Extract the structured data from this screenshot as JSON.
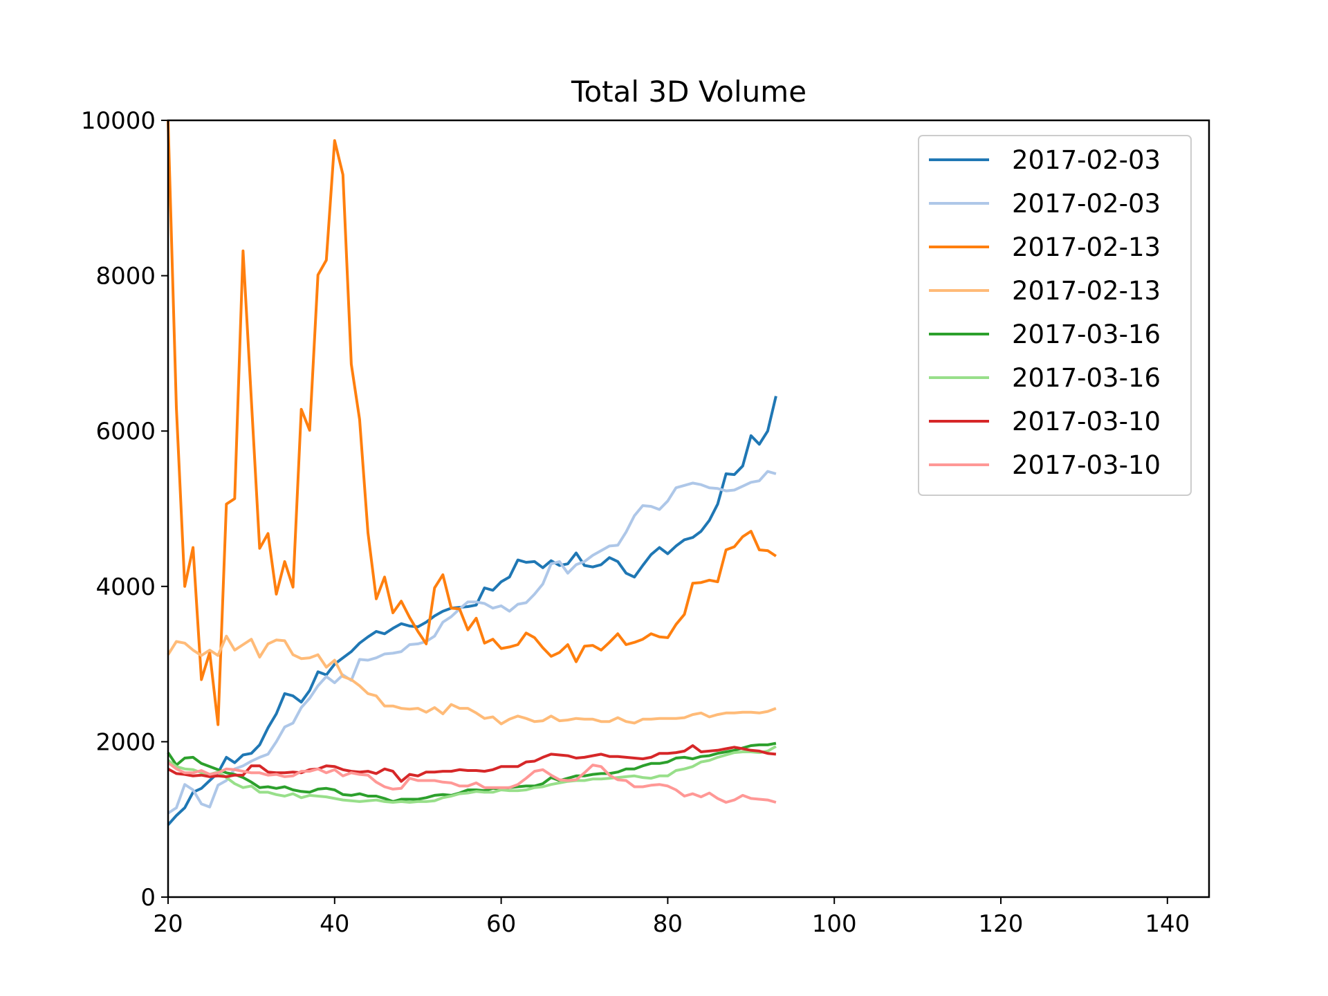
{
  "chart_data": {
    "type": "line",
    "title": "Total 3D Volume",
    "xlabel": "",
    "ylabel": "",
    "xlim": [
      20,
      145
    ],
    "ylim": [
      0,
      10000
    ],
    "xticks": [
      20,
      40,
      60,
      80,
      100,
      120,
      140
    ],
    "yticks": [
      0,
      2000,
      4000,
      6000,
      8000,
      10000
    ],
    "grid": false,
    "legend_position": "top-right",
    "x": [
      20,
      21,
      22,
      23,
      24,
      25,
      26,
      27,
      28,
      29,
      30,
      31,
      32,
      33,
      34,
      35,
      36,
      37,
      38,
      39,
      40,
      41,
      42,
      43,
      44,
      45,
      46,
      47,
      48,
      49,
      50,
      51,
      52,
      53,
      54,
      55,
      56,
      57,
      58,
      59,
      60,
      61,
      62,
      63,
      64,
      65,
      66,
      67,
      68,
      69,
      70,
      71,
      72,
      73,
      74,
      75,
      76,
      77,
      78,
      79,
      80,
      81,
      82,
      83,
      84,
      85,
      86,
      87,
      88,
      89,
      90,
      91,
      92,
      93
    ],
    "series": [
      {
        "name": "2017-02-03",
        "color": "#1f77b4",
        "values": [
          930,
          1050,
          1150,
          1350,
          1400,
          1500,
          1600,
          1800,
          1730,
          1830,
          1850,
          1960,
          2180,
          2360,
          2620,
          2590,
          2510,
          2660,
          2900,
          2860,
          3000,
          3080,
          3160,
          3270,
          3350,
          3420,
          3390,
          3460,
          3520,
          3490,
          3480,
          3540,
          3620,
          3680,
          3720,
          3730,
          3740,
          3760,
          3980,
          3950,
          4060,
          4120,
          4340,
          4310,
          4320,
          4240,
          4330,
          4270,
          4290,
          4430,
          4270,
          4250,
          4280,
          4370,
          4320,
          4170,
          4120,
          4270,
          4410,
          4500,
          4420,
          4520,
          4600,
          4630,
          4710,
          4850,
          5060,
          5450,
          5440,
          5550,
          5940,
          5830,
          6000,
          6450
        ]
      },
      {
        "name": "2017-02-03",
        "color": "#aec7e8",
        "values": [
          1080,
          1150,
          1450,
          1380,
          1200,
          1160,
          1440,
          1500,
          1650,
          1690,
          1750,
          1800,
          1840,
          2000,
          2190,
          2240,
          2440,
          2560,
          2720,
          2840,
          2760,
          2860,
          2790,
          3060,
          3050,
          3080,
          3130,
          3140,
          3160,
          3250,
          3260,
          3290,
          3360,
          3540,
          3610,
          3710,
          3800,
          3800,
          3780,
          3720,
          3750,
          3680,
          3770,
          3790,
          3900,
          4030,
          4290,
          4320,
          4170,
          4280,
          4320,
          4400,
          4460,
          4520,
          4530,
          4700,
          4910,
          5040,
          5030,
          4990,
          5100,
          5270,
          5300,
          5330,
          5310,
          5270,
          5260,
          5230,
          5240,
          5290,
          5340,
          5360,
          5480,
          5450
        ]
      },
      {
        "name": "2017-02-13",
        "color": "#ff7f0e",
        "values": [
          10000,
          6300,
          4000,
          4500,
          2800,
          3150,
          2220,
          5060,
          5130,
          8320,
          6400,
          4490,
          4680,
          3900,
          4320,
          3990,
          6280,
          6010,
          8010,
          8200,
          9740,
          9300,
          6860,
          6150,
          4690,
          3840,
          4120,
          3660,
          3810,
          3600,
          3420,
          3260,
          3980,
          4150,
          3720,
          3710,
          3440,
          3590,
          3270,
          3320,
          3200,
          3220,
          3250,
          3400,
          3340,
          3210,
          3100,
          3150,
          3250,
          3030,
          3230,
          3240,
          3180,
          3280,
          3390,
          3250,
          3280,
          3320,
          3390,
          3350,
          3340,
          3510,
          3640,
          4040,
          4050,
          4080,
          4060,
          4470,
          4510,
          4640,
          4710,
          4470,
          4460,
          4390
        ]
      },
      {
        "name": "2017-02-13",
        "color": "#ffbb78",
        "values": [
          3120,
          3290,
          3270,
          3180,
          3110,
          3180,
          3110,
          3360,
          3180,
          3250,
          3320,
          3090,
          3260,
          3310,
          3300,
          3120,
          3070,
          3080,
          3120,
          2960,
          3050,
          2840,
          2800,
          2720,
          2620,
          2590,
          2460,
          2460,
          2430,
          2420,
          2430,
          2380,
          2440,
          2360,
          2480,
          2430,
          2430,
          2370,
          2300,
          2320,
          2230,
          2290,
          2330,
          2300,
          2260,
          2270,
          2330,
          2270,
          2280,
          2300,
          2290,
          2290,
          2260,
          2260,
          2310,
          2260,
          2240,
          2290,
          2290,
          2300,
          2300,
          2300,
          2310,
          2350,
          2370,
          2320,
          2350,
          2370,
          2370,
          2380,
          2380,
          2370,
          2390,
          2430
        ]
      },
      {
        "name": "2017-03-16",
        "color": "#2ca02c",
        "values": [
          1860,
          1700,
          1790,
          1800,
          1720,
          1680,
          1640,
          1600,
          1580,
          1540,
          1480,
          1410,
          1420,
          1400,
          1420,
          1380,
          1360,
          1350,
          1390,
          1400,
          1380,
          1320,
          1310,
          1330,
          1300,
          1300,
          1270,
          1230,
          1260,
          1260,
          1260,
          1280,
          1310,
          1320,
          1310,
          1340,
          1380,
          1380,
          1370,
          1400,
          1390,
          1410,
          1420,
          1430,
          1430,
          1460,
          1540,
          1500,
          1530,
          1560,
          1560,
          1580,
          1590,
          1590,
          1610,
          1650,
          1650,
          1690,
          1720,
          1720,
          1740,
          1790,
          1800,
          1780,
          1810,
          1820,
          1850,
          1870,
          1890,
          1920,
          1950,
          1960,
          1960,
          1980
        ]
      },
      {
        "name": "2017-03-16",
        "color": "#98df8a",
        "values": [
          1760,
          1680,
          1650,
          1640,
          1600,
          1580,
          1610,
          1540,
          1460,
          1410,
          1430,
          1350,
          1350,
          1320,
          1300,
          1330,
          1280,
          1310,
          1300,
          1290,
          1270,
          1250,
          1240,
          1230,
          1240,
          1250,
          1230,
          1220,
          1230,
          1220,
          1230,
          1230,
          1240,
          1280,
          1300,
          1330,
          1340,
          1360,
          1350,
          1350,
          1380,
          1370,
          1370,
          1380,
          1410,
          1420,
          1450,
          1470,
          1490,
          1500,
          1500,
          1520,
          1520,
          1530,
          1540,
          1550,
          1560,
          1540,
          1530,
          1560,
          1560,
          1630,
          1650,
          1680,
          1740,
          1760,
          1800,
          1830,
          1860,
          1870,
          1870,
          1860,
          1880,
          1940
        ]
      },
      {
        "name": "2017-03-10",
        "color": "#d62728",
        "values": [
          1650,
          1590,
          1580,
          1560,
          1570,
          1550,
          1560,
          1550,
          1570,
          1570,
          1690,
          1690,
          1610,
          1600,
          1600,
          1610,
          1600,
          1640,
          1650,
          1690,
          1680,
          1640,
          1620,
          1610,
          1620,
          1590,
          1650,
          1620,
          1490,
          1580,
          1560,
          1610,
          1610,
          1620,
          1620,
          1640,
          1630,
          1630,
          1620,
          1640,
          1680,
          1680,
          1680,
          1740,
          1750,
          1800,
          1840,
          1830,
          1820,
          1790,
          1800,
          1820,
          1840,
          1810,
          1810,
          1800,
          1790,
          1780,
          1800,
          1850,
          1850,
          1860,
          1880,
          1950,
          1870,
          1880,
          1890,
          1910,
          1930,
          1910,
          1890,
          1880,
          1850,
          1840
        ]
      },
      {
        "name": "2017-03-10",
        "color": "#ff9896",
        "values": [
          1730,
          1650,
          1600,
          1600,
          1630,
          1580,
          1600,
          1650,
          1640,
          1620,
          1600,
          1600,
          1570,
          1580,
          1550,
          1560,
          1620,
          1620,
          1650,
          1600,
          1640,
          1560,
          1600,
          1580,
          1570,
          1480,
          1420,
          1390,
          1400,
          1530,
          1500,
          1500,
          1500,
          1480,
          1470,
          1430,
          1430,
          1470,
          1410,
          1410,
          1410,
          1410,
          1450,
          1530,
          1620,
          1640,
          1570,
          1510,
          1500,
          1510,
          1600,
          1700,
          1680,
          1570,
          1510,
          1500,
          1420,
          1420,
          1440,
          1450,
          1430,
          1380,
          1300,
          1330,
          1290,
          1340,
          1270,
          1220,
          1250,
          1310,
          1270,
          1260,
          1250,
          1220
        ]
      }
    ]
  }
}
